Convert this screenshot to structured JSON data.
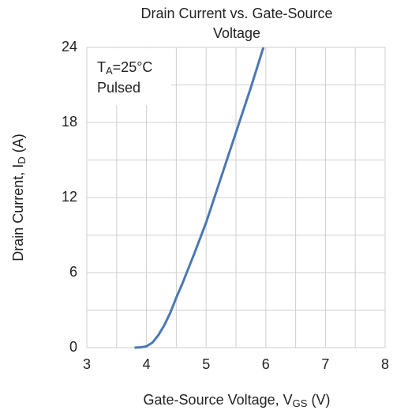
{
  "chart_data": {
    "type": "line",
    "title": [
      "Drain Current vs. Gate-Source",
      "Voltage"
    ],
    "x_label": {
      "text": "Gate-Source Voltage, V",
      "sub": "GS",
      "unit": "(V)"
    },
    "y_label": {
      "text": "Drain Current, I",
      "sub": "D",
      "unit": "(A)"
    },
    "annotation": {
      "text": "T",
      "sub": "A",
      "rest": "=25°C",
      "line2": "Pulsed"
    },
    "x": [
      3.8,
      3.9,
      4.0,
      4.1,
      4.2,
      4.3,
      4.4,
      4.5,
      4.6,
      4.7,
      4.8,
      5.0,
      5.25,
      5.5,
      5.75,
      5.96
    ],
    "series": [
      {
        "name": "ID",
        "color": "#4a78b5",
        "values": [
          0,
          0.02,
          0.1,
          0.4,
          1.0,
          1.8,
          2.8,
          4.0,
          5.1,
          6.3,
          7.5,
          10.0,
          13.6,
          17.2,
          20.8,
          24
        ]
      }
    ],
    "xlim": [
      3,
      8
    ],
    "xticks": [
      3,
      4,
      5,
      6,
      7,
      8
    ],
    "ylim": [
      0,
      24
    ],
    "yticks": [
      0,
      6,
      12,
      18,
      24
    ],
    "x_minor_grid": [
      3.5,
      4.5,
      5.5,
      6.5,
      7.5
    ],
    "y_minor_grid": [
      3,
      9,
      15,
      21
    ],
    "grid": true
  }
}
